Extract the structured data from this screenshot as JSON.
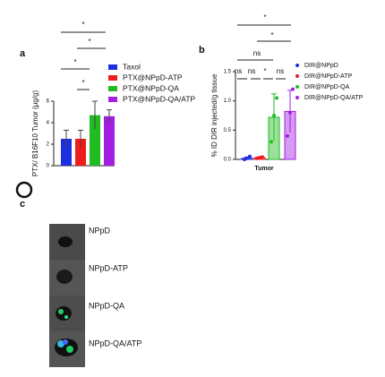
{
  "chart_data": [
    {
      "type": "bar",
      "panel": "a",
      "y_label": "PTX/ B16F10 Tumor (μg/g)",
      "ylim": [
        0,
        6
      ],
      "yticks": [
        0,
        2,
        4,
        6
      ],
      "series": [
        {
          "name": "Taxol",
          "color": "#1f2fe0",
          "values": [
            2.5
          ],
          "errors": [
            0.8
          ]
        },
        {
          "name": "PTX@NPpD-ATP",
          "color": "#ee1c1c",
          "values": [
            2.5
          ],
          "errors": [
            0.8
          ]
        },
        {
          "name": "PTX@NPpD-QA",
          "color": "#22bb22",
          "values": [
            4.7
          ],
          "errors": [
            1.3
          ]
        },
        {
          "name": "PTX@NPpD-QA/ATP",
          "color": "#a21fe0",
          "values": [
            4.6
          ],
          "errors": [
            0.6
          ]
        }
      ],
      "annotations": [
        "*",
        "*",
        "*",
        "*"
      ]
    },
    {
      "type": "bar",
      "panel": "b",
      "y_label": "% ID DIR injected/g tissue",
      "categories": [
        "Tumor"
      ],
      "ylim": [
        0,
        1.5
      ],
      "yticks": [
        {
          "value": 0,
          "label": "0.0"
        },
        {
          "value": 0.5,
          "label": "0.5"
        },
        {
          "value": 1,
          "label": "1.0"
        },
        {
          "value": 1.5,
          "label": "1.5"
        }
      ],
      "series": [
        {
          "name": "DIR@NPpD",
          "color": "#1f2fe0",
          "values": [
            0.02
          ],
          "errors": [
            0.02
          ],
          "points": [
            0.0,
            0.02,
            0.05
          ]
        },
        {
          "name": "DIR@NPpD-ATP",
          "color": "#ee1c1c",
          "values": [
            0.03
          ],
          "errors": [
            0.01
          ],
          "points": [
            0.02,
            0.03,
            0.04
          ]
        },
        {
          "name": "DIR@NPpD-QA",
          "color": "#22bb22",
          "values": [
            0.72
          ],
          "errors": [
            0.4
          ],
          "points": [
            0.3,
            0.75,
            1.05
          ]
        },
        {
          "name": "DIR@NPpD-QA/ATP",
          "color": "#a21fe0",
          "values": [
            0.82
          ],
          "errors": [
            0.36
          ],
          "points": [
            0.4,
            0.8,
            1.2
          ]
        }
      ],
      "annotations": [
        "*",
        "*",
        "ns",
        "ns",
        "ns",
        "*",
        "ns"
      ]
    }
  ],
  "panel_c": {
    "label": "c",
    "items": [
      "NPpD",
      "NPpD-ATP",
      "NPpD-QA",
      "NPpD-QA/ATP"
    ]
  }
}
